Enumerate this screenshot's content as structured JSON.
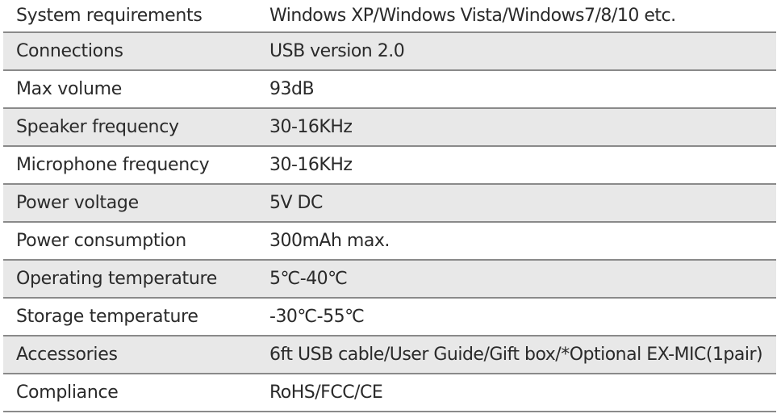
{
  "rows": [
    {
      "label": "System requirements",
      "value": "Windows XP/Windows Vista/Windows7/8/10 etc."
    },
    {
      "label": "Connections",
      "value": "USB version 2.0"
    },
    {
      "label": "Max volume",
      "value": "93dB"
    },
    {
      "label": "Speaker frequency",
      "value": "30-16KHz"
    },
    {
      "label": "Microphone frequency",
      "value": "30-16KHz"
    },
    {
      "label": "Power voltage",
      "value": "5V DC"
    },
    {
      "label": "Power consumption",
      "value": "300mAh max."
    },
    {
      "label": "Operating temperature",
      "value": "5℃-40℃"
    },
    {
      "label": "Storage temperature",
      "value": "-30℃-55℃"
    },
    {
      "label": "Accessories",
      "value": "6ft USB cable/User Guide/Gift box/*Optional EX-MIC(1pair)"
    },
    {
      "label": "Compliance",
      "value": "RoHS/FCC/CE"
    }
  ]
}
